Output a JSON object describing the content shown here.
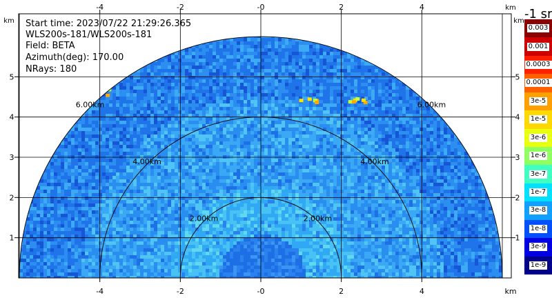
{
  "info": {
    "start_time": "Start time: 2023/07/22 21:29:26.365",
    "instrument": "WLS200s-181/WLS200s-181",
    "field": "Field: BETA",
    "azimuth": "Azimuth(deg): 170.00",
    "nrays": "NRays: 180"
  },
  "chart_data": {
    "type": "heatmap",
    "subtype": "rhi-range-height",
    "xlabel": "km",
    "ylabel": "km",
    "xlim": [
      -6.3,
      6.3
    ],
    "ylim": [
      0,
      5.6
    ],
    "x_ticks": [
      -4,
      -2,
      0,
      2,
      4
    ],
    "y_ticks": [
      1,
      2,
      3,
      4,
      5
    ],
    "grid": true,
    "range_rings_km": [
      2,
      4,
      6
    ],
    "range_ring_labels": [
      "2.00km",
      "4.00km",
      "6.00km"
    ],
    "max_range_km": 6.0,
    "colorbar": {
      "title": "-1 sr",
      "labels": [
        "0.003",
        "0.001",
        "0.0003",
        "0.0001",
        "3e-5",
        "1e-5",
        "3e-6",
        "1e-6",
        "3e-7",
        "1e-7",
        "3e-8",
        "1e-8",
        "3e-9",
        "1e-9"
      ],
      "colors": [
        "#8a0000",
        "#cc0000",
        "#ff2000",
        "#ff6000",
        "#ffa000",
        "#ffd800",
        "#e8ff10",
        "#90ff60",
        "#40ffc0",
        "#00e0ff",
        "#10a0ff",
        "#0050ff",
        "#0000e0",
        "#00008a"
      ]
    }
  }
}
